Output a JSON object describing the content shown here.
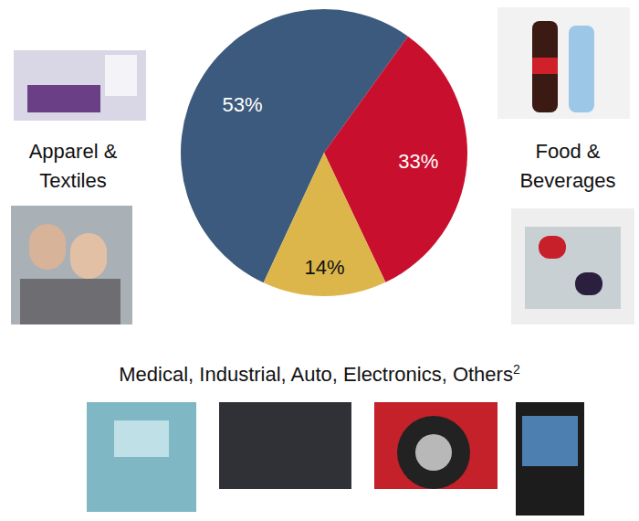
{
  "chart_data": {
    "type": "pie",
    "categories": [
      "Apparel & Textiles",
      "Food & Beverages",
      "Medical, Industrial, Auto, Electronics, Others"
    ],
    "superscripts": [
      null,
      null,
      "2"
    ],
    "values": [
      53,
      33,
      14
    ],
    "value_labels": [
      "53%",
      "33%",
      "14%"
    ],
    "colors": [
      "#3c5a7d",
      "#c8102e",
      "#dcb64a"
    ],
    "data_labels": true
  }
}
